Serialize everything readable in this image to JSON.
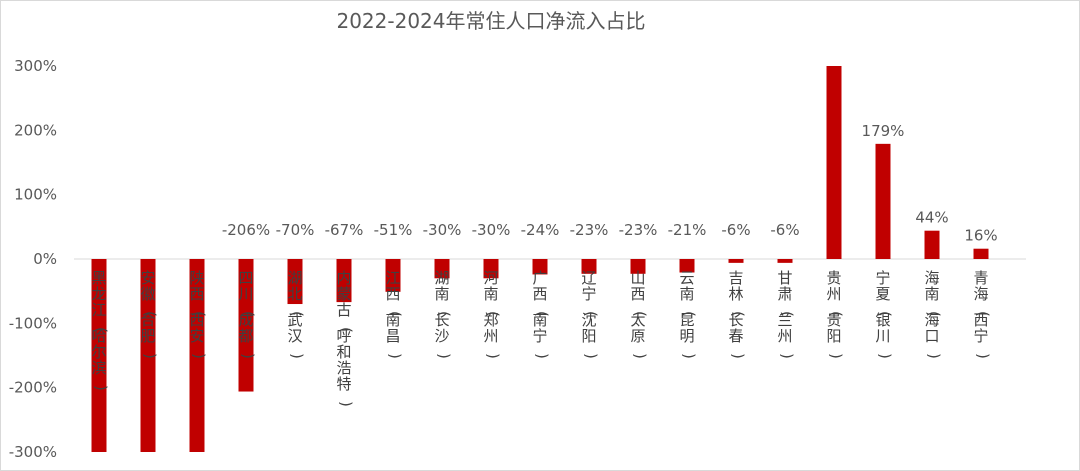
{
  "chart_data": {
    "type": "bar",
    "title": "2022-2024年常住人口净流入占比",
    "xlabel": "",
    "ylabel": "",
    "ylim": [
      -300,
      300
    ],
    "yticks": [
      300,
      200,
      100,
      0,
      -100,
      -200,
      -300
    ],
    "ytick_labels": [
      "300%",
      "200%",
      "100%",
      "0%",
      "-100%",
      "-200%",
      "-300%"
    ],
    "grid": false,
    "legend": "none",
    "bar_color": "#c00000",
    "categories": [
      "黑龙江(哈尔滨)",
      "安徽(合肥)",
      "陕西(西安)",
      "四川(成都)",
      "湖北(武汉)",
      "内蒙古(呼和浩特)",
      "江西(南昌)",
      "湖南(长沙)",
      "河南(郑州)",
      "广西(南宁)",
      "辽宁(沈阳)",
      "山西(太原)",
      "云南(昆明)",
      "吉林(长春)",
      "甘肃(兰州)",
      "贵州(贵阳)",
      "宁夏(银川)",
      "海南(海口)",
      "青海(西宁)"
    ],
    "values": [
      -300,
      -300,
      -300,
      -206,
      -70,
      -67,
      -51,
      -30,
      -30,
      -24,
      -23,
      -23,
      -21,
      -6,
      -6,
      300,
      179,
      44,
      16
    ],
    "data_labels": [
      "",
      "",
      "",
      "-206%",
      "-70%",
      "-67%",
      "-51%",
      "-30%",
      "-30%",
      "-24%",
      "-23%",
      "-23%",
      "-21%",
      "-6%",
      "-6%",
      "",
      "179%",
      "44%",
      "16%"
    ]
  }
}
